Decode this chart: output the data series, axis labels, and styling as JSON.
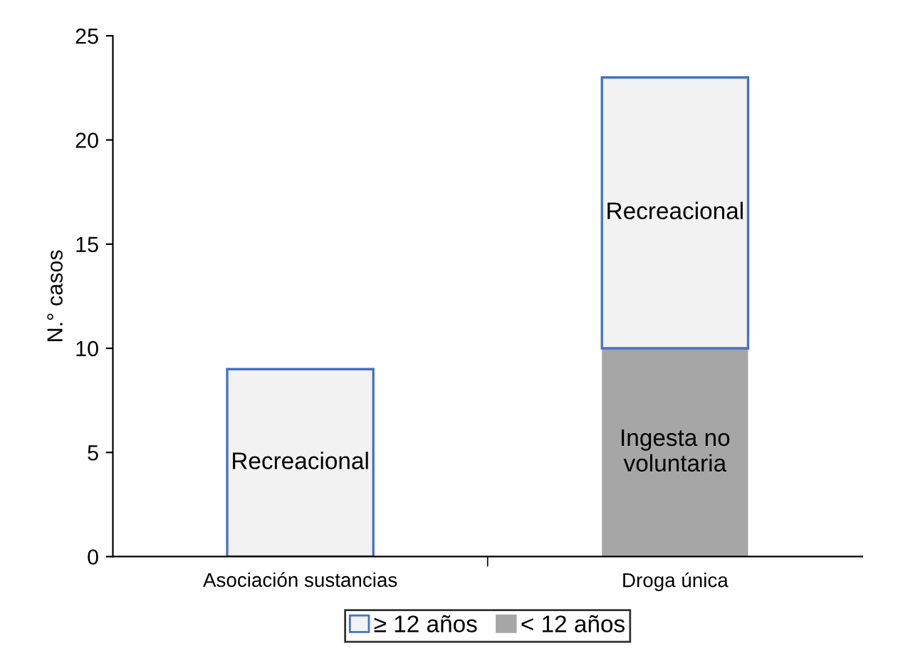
{
  "chart_data": {
    "type": "bar",
    "stacked": true,
    "ylabel": "N.° casos",
    "categories": [
      "Asociación sustancias",
      "Droga única"
    ],
    "series": [
      {
        "name": "< 12 años",
        "color": "#a6a6a6",
        "values": [
          0,
          10
        ]
      },
      {
        "name": "≥ 12 años",
        "color": "#f2f2f2",
        "values": [
          9,
          13
        ]
      }
    ],
    "ylim": [
      0,
      25
    ],
    "yticks": [
      0,
      5,
      10,
      15,
      20,
      25
    ],
    "grid": false,
    "legend": "bottom",
    "annotations": [
      "Ingesta no\nvoluntaria",
      "Recreacional",
      "Recreacional"
    ]
  }
}
